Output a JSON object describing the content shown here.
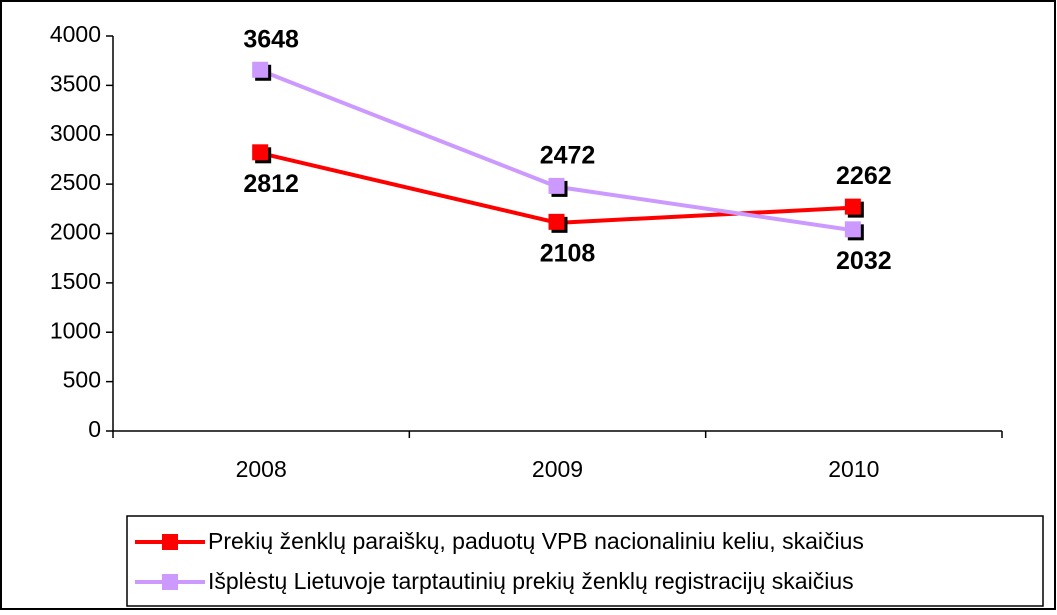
{
  "chart_data": {
    "type": "line",
    "categories": [
      "2008",
      "2009",
      "2010"
    ],
    "series": [
      {
        "name": "Prekių ženklų paraiškų, paduotų VPB nacionaliniu keliu, skaičius",
        "color": "#ff0000",
        "values": [
          2812,
          2108,
          2262
        ]
      },
      {
        "name": "Išplėstų Lietuvoje tarptautinių prekių ženklų registracijų skaičius",
        "color": "#cc99ff",
        "values": [
          3648,
          2472,
          2032
        ]
      }
    ],
    "ylim": [
      0,
      4000
    ],
    "yticks": [
      0,
      500,
      1000,
      1500,
      2000,
      2500,
      3000,
      3500,
      4000
    ],
    "grid": false,
    "legend": "bottom"
  }
}
